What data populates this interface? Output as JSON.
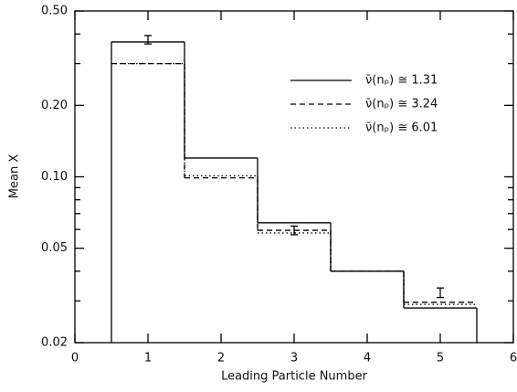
{
  "chart_data": {
    "type": "step",
    "xlabel": "Leading Particle Number",
    "ylabel": "Mean X",
    "x": [
      1,
      2,
      3,
      4,
      5
    ],
    "series": [
      {
        "name": "ν̄(nₚ) ≅ 1.31",
        "color": "#000000",
        "style": "solid",
        "values": [
          0.37,
          0.12,
          0.064,
          0.04,
          0.028
        ]
      },
      {
        "name": "ν̄(nₚ) ≅ 3.24",
        "color": "#000000",
        "style": "dashed",
        "values": [
          0.3,
          0.099,
          0.0595,
          0.04,
          0.0296
        ]
      },
      {
        "name": "ν̄(nₚ) ≅ 6.01",
        "color": "#000000",
        "style": "dotted",
        "values": [
          0.3,
          0.101,
          0.058,
          0.04,
          0.029
        ]
      }
    ],
    "error_bars": [
      {
        "x": 1,
        "low": 0.363,
        "high": 0.394
      },
      {
        "x": 3,
        "low": 0.057,
        "high": 0.062
      },
      {
        "x": 5,
        "low": 0.031,
        "high": 0.034
      }
    ],
    "xlim": [
      0,
      6
    ],
    "xticks": [
      0,
      1,
      2,
      3,
      4,
      5,
      6
    ],
    "ylim": [
      0.02,
      0.5
    ],
    "ylog": true,
    "yticks": [
      {
        "value": 0.02,
        "label": "0.02"
      },
      {
        "value": 0.05,
        "label": "0.05"
      },
      {
        "value": 0.1,
        "label": "0.10"
      },
      {
        "value": 0.2,
        "label": "0.20"
      },
      {
        "value": 0.5,
        "label": "0.50"
      }
    ],
    "yminorticks": [
      0.03,
      0.04,
      0.06,
      0.07,
      0.08,
      0.09,
      0.3,
      0.4
    ],
    "legend": "upper right"
  }
}
